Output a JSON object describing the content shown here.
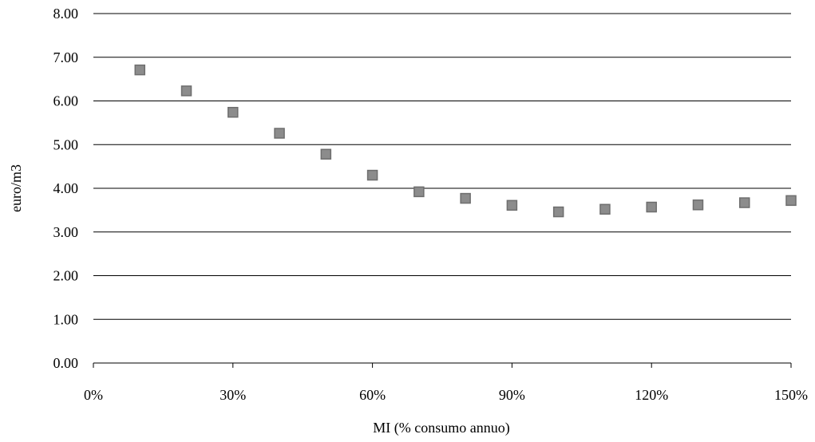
{
  "chart_data": {
    "type": "scatter",
    "xlabel": "MI (% consumo annuo)",
    "ylabel": "euro/m3",
    "xlim": [
      0,
      150
    ],
    "ylim": [
      0,
      8
    ],
    "x_ticks": [
      0,
      30,
      60,
      90,
      120,
      150
    ],
    "x_tick_labels": [
      "0%",
      "30%",
      "60%",
      "90%",
      "120%",
      "150%"
    ],
    "y_ticks": [
      0,
      1,
      2,
      3,
      4,
      5,
      6,
      7,
      8
    ],
    "y_tick_labels": [
      "0.00",
      "1.00",
      "2.00",
      "3.00",
      "4.00",
      "5.00",
      "6.00",
      "7.00",
      "8.00"
    ],
    "grid": "horizontal",
    "legend": "none",
    "marker": "square",
    "marker_color": "#8c8c8c",
    "series": [
      {
        "x": [
          10,
          20,
          30,
          40,
          50,
          60,
          70,
          80,
          90,
          100,
          110,
          120,
          130,
          140,
          150
        ],
        "y": [
          6.71,
          6.23,
          5.74,
          5.26,
          4.78,
          4.3,
          3.92,
          3.77,
          3.61,
          3.46,
          3.52,
          3.57,
          3.62,
          3.67,
          3.72
        ]
      }
    ]
  }
}
